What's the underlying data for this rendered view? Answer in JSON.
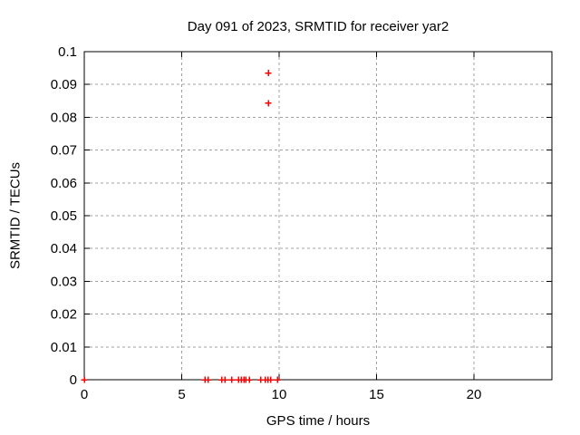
{
  "chart_data": {
    "type": "scatter",
    "title": "Day 091 of 2023, SRMTID for receiver yar2",
    "xlabel": "GPS time / hours",
    "ylabel": "SRMTID / TECUs",
    "xlim": [
      0,
      24
    ],
    "ylim": [
      0,
      0.1
    ],
    "x_ticks": [
      0,
      5,
      10,
      15,
      20
    ],
    "x_tick_labels": [
      "0",
      "5",
      "10",
      "15",
      "20"
    ],
    "y_ticks": [
      0,
      0.01,
      0.02,
      0.03,
      0.04,
      0.05,
      0.06,
      0.07,
      0.08,
      0.09,
      0.1
    ],
    "y_tick_labels": [
      "0",
      "0.01",
      "0.02",
      "0.03",
      "0.04",
      "0.05",
      "0.06",
      "0.07",
      "0.08",
      "0.09",
      "0.1"
    ],
    "grid": true,
    "grid_style": "dashed",
    "legend": "none",
    "marker": {
      "shape": "plus",
      "color": "#ff0000",
      "size": 7
    },
    "colors": {
      "marker": "#ff0000",
      "grid": "#a0a0a0",
      "axis": "#000000",
      "text": "#000000",
      "background": "#ffffff"
    },
    "series": [
      {
        "name": "SRMTID",
        "points": [
          [
            0.0,
            0
          ],
          [
            6.19,
            0
          ],
          [
            6.35,
            0
          ],
          [
            7.05,
            0
          ],
          [
            7.21,
            0
          ],
          [
            7.56,
            0
          ],
          [
            7.91,
            0
          ],
          [
            8.05,
            0
          ],
          [
            8.19,
            0
          ],
          [
            8.3,
            0
          ],
          [
            8.47,
            0
          ],
          [
            9.05,
            0
          ],
          [
            9.28,
            0
          ],
          [
            9.42,
            0
          ],
          [
            9.56,
            0
          ],
          [
            9.91,
            0
          ],
          [
            9.45,
            0.0843
          ],
          [
            9.45,
            0.0935
          ]
        ]
      }
    ]
  }
}
